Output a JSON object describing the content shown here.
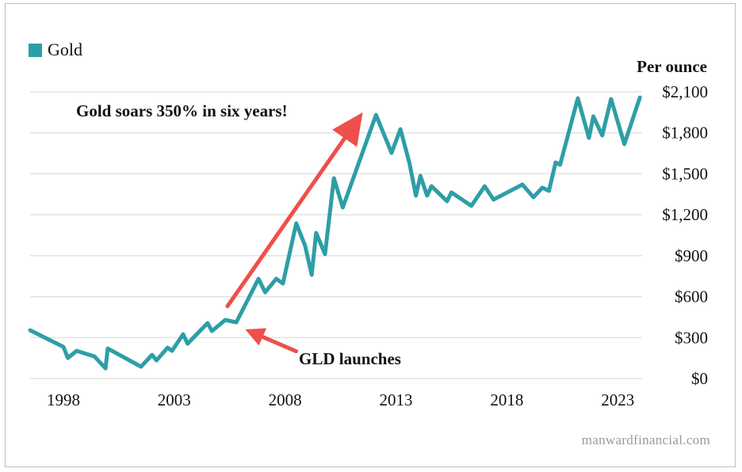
{
  "chart_data": {
    "type": "line",
    "title": "",
    "xlabel": "",
    "ylabel": "Per ounce",
    "xlim": [
      1996.5,
      2024.1
    ],
    "ylim": [
      0,
      2100
    ],
    "x_ticks": [
      1998,
      2003,
      2008,
      2013,
      2018,
      2023
    ],
    "x_tick_labels": [
      "1998",
      "2003",
      "2008",
      "2013",
      "2018",
      "2023"
    ],
    "y_ticks": [
      0,
      300,
      600,
      900,
      1200,
      1500,
      1800,
      2100
    ],
    "y_tick_labels": [
      "$0",
      "$300",
      "$600",
      "$900",
      "$1,200",
      "$1,500",
      "$1,800",
      "$2,100"
    ],
    "grid": "horizontal",
    "legend_placement": "top-left",
    "series": [
      {
        "name": "Gold",
        "color": "#2e9ea6",
        "x": [
          1996.5,
          1998.0,
          1998.2,
          1998.6,
          1999.4,
          1999.9,
          2000.0,
          2001.5,
          2002.0,
          2002.2,
          2002.7,
          2002.9,
          2003.4,
          2003.6,
          2004.5,
          2004.7,
          2005.3,
          2005.8,
          2006.8,
          2007.1,
          2007.6,
          2007.9,
          2008.5,
          2008.9,
          2009.2,
          2009.4,
          2009.8,
          2010.2,
          2010.6,
          2012.1,
          2012.8,
          2013.2,
          2013.6,
          2013.9,
          2014.1,
          2014.4,
          2014.6,
          2015.3,
          2015.5,
          2016.4,
          2017.0,
          2017.4,
          2018.7,
          2019.2,
          2019.6,
          2019.9,
          2020.2,
          2020.4,
          2021.2,
          2021.7,
          2021.9,
          2022.3,
          2022.7,
          2023.3,
          2024.0
        ],
        "y": [
          354,
          232,
          151,
          203,
          162,
          75,
          220,
          87,
          174,
          133,
          226,
          203,
          325,
          255,
          406,
          348,
          429,
          412,
          731,
          632,
          731,
          696,
          1137,
          974,
          760,
          1067,
          911,
          1467,
          1253,
          1931,
          1653,
          1827,
          1583,
          1340,
          1485,
          1340,
          1409,
          1299,
          1363,
          1265,
          1409,
          1311,
          1421,
          1328,
          1398,
          1375,
          1583,
          1566,
          2053,
          1763,
          1920,
          1781,
          2048,
          1717,
          2059
        ]
      }
    ],
    "annotations": [
      {
        "text": "Gold soars 350% in six years!",
        "arrow_from": [
          2005.4,
          530
        ],
        "arrow_to": [
          2011.5,
          1950
        ],
        "color": "#ef4f4a"
      },
      {
        "text": "GLD launches",
        "arrow_from": [
          2008.5,
          200
        ],
        "arrow_to": [
          2006.2,
          360
        ],
        "color": "#ef4f4a"
      }
    ]
  },
  "legend": {
    "label": "Gold",
    "color": "#2e9ea6"
  },
  "unit_label": "Per ounce",
  "watermark": "manwardfinancial.com"
}
